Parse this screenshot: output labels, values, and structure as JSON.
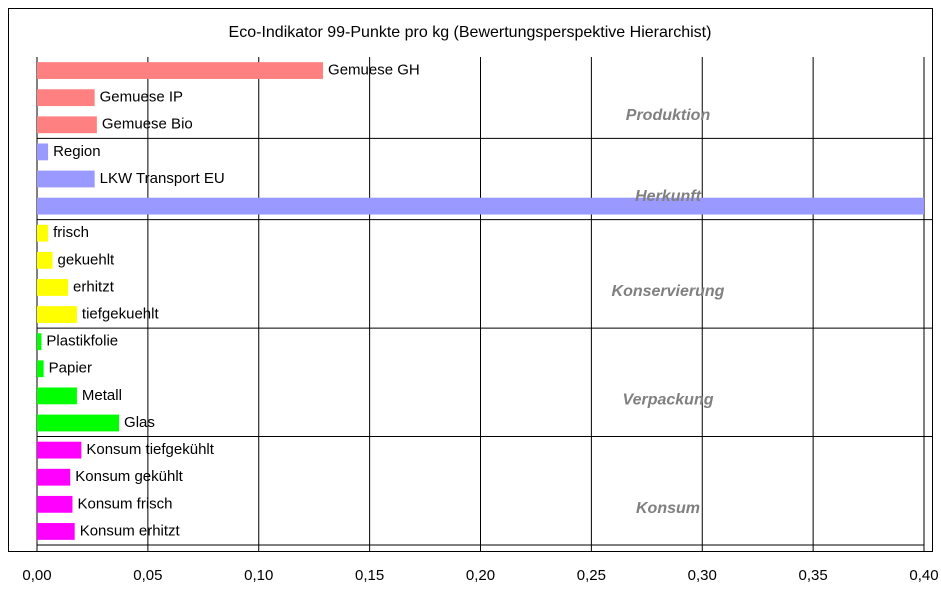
{
  "chart_data": {
    "type": "hbar",
    "title": "Eco-Indikator 99-Punkte pro kg (Bewertungsperspektive Hierarchist)",
    "xlim": [
      0,
      0.4
    ],
    "xticks": [
      {
        "value": 0,
        "label": "0,00"
      },
      {
        "value": 0.05,
        "label": "0,05"
      },
      {
        "value": 0.1,
        "label": "0,10"
      },
      {
        "value": 0.15,
        "label": "0,15"
      },
      {
        "value": 0.2,
        "label": "0,20"
      },
      {
        "value": 0.25,
        "label": "0,25"
      },
      {
        "value": 0.3,
        "label": "0,30"
      },
      {
        "value": 0.35,
        "label": "0,35"
      },
      {
        "value": 0.4,
        "label": "0,40"
      }
    ],
    "grid": true,
    "groups": [
      {
        "name": "Produktion",
        "color": "#ff8080",
        "categories": [
          "Gemuese GH",
          "Gemuese IP",
          "Gemuese Bio"
        ],
        "values": [
          0.129,
          0.026,
          0.027
        ]
      },
      {
        "name": "Herkunft",
        "color": "#9999ff",
        "categories": [
          "Region",
          "LKW Transport EU",
          null
        ],
        "values": [
          0.005,
          0.026,
          0.4
        ]
      },
      {
        "name": "Konservierung",
        "color": "#ffff00",
        "categories": [
          "frisch",
          "gekuehlt",
          "erhitzt",
          "tiefgekuehlt"
        ],
        "values": [
          0.005,
          0.007,
          0.014,
          0.018
        ]
      },
      {
        "name": "Verpackung",
        "color": "#00ff00",
        "categories": [
          "Plastikfolie",
          "Papier",
          "Metall",
          "Glas"
        ],
        "values": [
          0.002,
          0.003,
          0.018,
          0.037
        ]
      },
      {
        "name": "Konsum",
        "color": "#ff00ff",
        "categories": [
          "Konsum tiefgekühlt",
          "Konsum gekühlt",
          "Konsum frisch",
          "Konsum erhitzt"
        ],
        "values": [
          0.02,
          0.015,
          0.016,
          0.017
        ]
      }
    ]
  }
}
